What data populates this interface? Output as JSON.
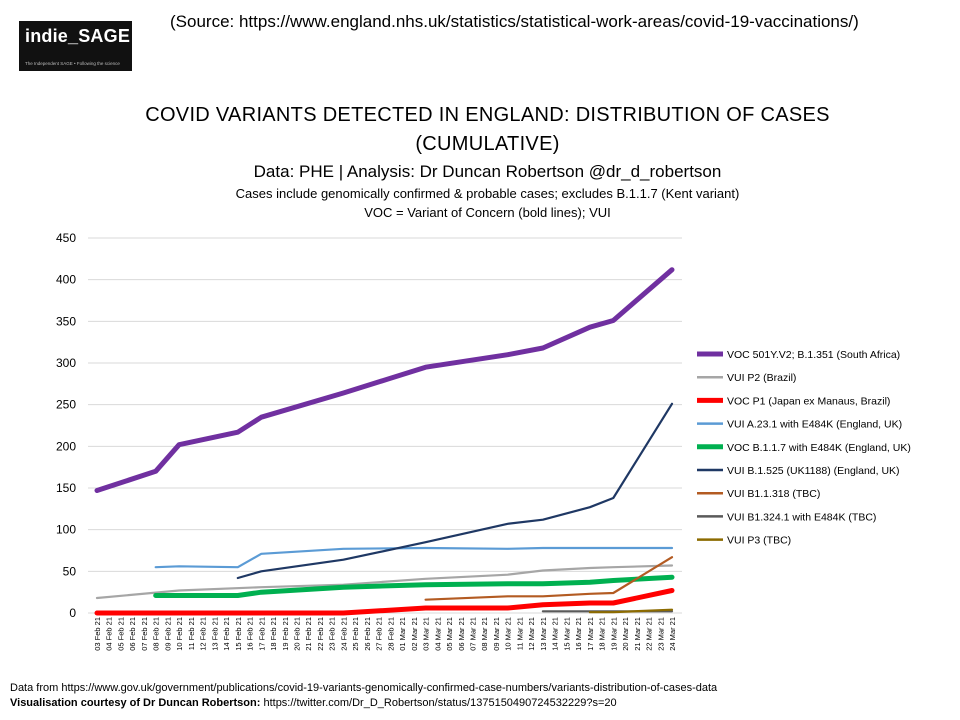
{
  "logo": {
    "title": "indie_SAGE",
    "tagline": "The Independent SAGE • Following the science"
  },
  "source_note": "(Source: https://www.england.nhs.uk/statistics/statistical-work-areas/covid-19-vaccinations/)",
  "footer": {
    "data_from": "Data from https://www.gov.uk/government/publications/covid-19-variants-genomically-confirmed-case-numbers/variants-distribution-of-cases-data",
    "credit_label": "Visualisation  courtesy of Dr Duncan  Robertson:",
    "credit_link": " https://twitter.com/Dr_D_Robertson/status/1375150490724532229?s=20"
  },
  "chart_data": {
    "type": "line",
    "title": "COVID VARIANTS DETECTED IN ENGLAND: DISTRIBUTION OF CASES",
    "title_line2": "(CUMULATIVE)",
    "subtitle": "Data: PHE | Analysis: Dr Duncan Robertson @dr_d_robertson",
    "note1": "Cases include genomically confirmed & probable cases; excludes B.1.1.7 (Kent variant)",
    "note2": "VOC = Variant of Concern (bold lines); VUI",
    "xlabel": "",
    "ylabel": "",
    "ylim": [
      0,
      450
    ],
    "yticks": [
      0,
      50,
      100,
      150,
      200,
      250,
      300,
      350,
      400,
      450
    ],
    "grid": true,
    "legend_position": "right",
    "categories": [
      "03 Feb 21",
      "04 Feb 21",
      "05 Feb 21",
      "06 Feb 21",
      "07 Feb 21",
      "08 Feb 21",
      "09 Feb 21",
      "10 Feb 21",
      "11 Feb 21",
      "12 Feb 21",
      "13 Feb 21",
      "14 Feb 21",
      "15 Feb 21",
      "16 Feb 21",
      "17 Feb 21",
      "18 Feb 21",
      "19 Feb 21",
      "20 Feb 21",
      "21 Feb 21",
      "22 Feb 21",
      "23 Feb 21",
      "24 Feb 21",
      "25 Feb 21",
      "26 Feb 21",
      "27 Feb 21",
      "28 Feb 21",
      "01 Mar 21",
      "02 Mar 21",
      "03 Mar 21",
      "04 Mar 21",
      "05 Mar 21",
      "06 Mar 21",
      "07 Mar 21",
      "08 Mar 21",
      "09 Mar 21",
      "10 Mar 21",
      "11 Mar 21",
      "12 Mar 21",
      "13 Mar 21",
      "14 Mar 21",
      "15 Mar 21",
      "16 Mar 21",
      "17 Mar 21",
      "18 Mar 21",
      "19 Mar 21",
      "20 Mar 21",
      "21 Mar 21",
      "22 Mar 21",
      "23 Mar 21",
      "24 Mar 21"
    ],
    "series": [
      {
        "name": "VOC 501Y.V2; B.1.351 (South Africa)",
        "color": "#7030a0",
        "bold": true,
        "points": [
          [
            0,
            147
          ],
          [
            5,
            170
          ],
          [
            7,
            202
          ],
          [
            12,
            217
          ],
          [
            14,
            235
          ],
          [
            21,
            264
          ],
          [
            28,
            295
          ],
          [
            35,
            310
          ],
          [
            38,
            318
          ],
          [
            42,
            343
          ],
          [
            44,
            351
          ],
          [
            49,
            412
          ]
        ]
      },
      {
        "name": "VUI P2 (Brazil)",
        "color": "#a6a6a6",
        "bold": false,
        "points": [
          [
            0,
            18
          ],
          [
            7,
            27
          ],
          [
            14,
            31
          ],
          [
            21,
            34
          ],
          [
            28,
            41
          ],
          [
            35,
            46
          ],
          [
            38,
            51
          ],
          [
            42,
            54
          ],
          [
            44,
            55
          ],
          [
            49,
            57
          ]
        ]
      },
      {
        "name": "VOC P1 (Japan ex Manaus, Brazil)",
        "color": "#ff0000",
        "bold": true,
        "points": [
          [
            0,
            0
          ],
          [
            21,
            0
          ],
          [
            28,
            6
          ],
          [
            35,
            6
          ],
          [
            38,
            10
          ],
          [
            42,
            12
          ],
          [
            44,
            12
          ],
          [
            49,
            27
          ]
        ]
      },
      {
        "name": "VUI A.23.1 with E484K (England, UK)",
        "color": "#5b9bd5",
        "bold": false,
        "points": [
          [
            5,
            55
          ],
          [
            7,
            56
          ],
          [
            12,
            55
          ],
          [
            14,
            71
          ],
          [
            21,
            77
          ],
          [
            28,
            78
          ],
          [
            35,
            77
          ],
          [
            38,
            78
          ],
          [
            49,
            78
          ]
        ]
      },
      {
        "name": "VOC B.1.1.7 with E484K (England, UK)",
        "color": "#00b050",
        "bold": true,
        "points": [
          [
            5,
            21
          ],
          [
            12,
            21
          ],
          [
            14,
            25
          ],
          [
            21,
            31
          ],
          [
            28,
            34
          ],
          [
            35,
            35
          ],
          [
            38,
            35
          ],
          [
            42,
            37
          ],
          [
            44,
            39
          ],
          [
            49,
            43
          ]
        ]
      },
      {
        "name": "VUI B.1.525 (UK1188) (England, UK)",
        "color": "#1f3864",
        "bold": false,
        "points": [
          [
            12,
            42
          ],
          [
            14,
            50
          ],
          [
            21,
            64
          ],
          [
            28,
            85
          ],
          [
            35,
            107
          ],
          [
            38,
            112
          ],
          [
            42,
            127
          ],
          [
            44,
            138
          ],
          [
            49,
            251
          ]
        ]
      },
      {
        "name": "VUI B1.1.318 (TBC)",
        "color": "#b35b22",
        "bold": false,
        "points": [
          [
            28,
            16
          ],
          [
            35,
            20
          ],
          [
            38,
            20
          ],
          [
            42,
            23
          ],
          [
            44,
            24
          ],
          [
            49,
            67
          ]
        ]
      },
      {
        "name": "VUI B1.324.1 with E484K (TBC)",
        "color": "#5a5a5a",
        "bold": false,
        "points": [
          [
            38,
            2
          ],
          [
            49,
            2
          ]
        ]
      },
      {
        "name": "VUI P3 (TBC)",
        "color": "#8c6b00",
        "bold": false,
        "points": [
          [
            42,
            1
          ],
          [
            44,
            1
          ],
          [
            49,
            4
          ]
        ]
      }
    ]
  }
}
